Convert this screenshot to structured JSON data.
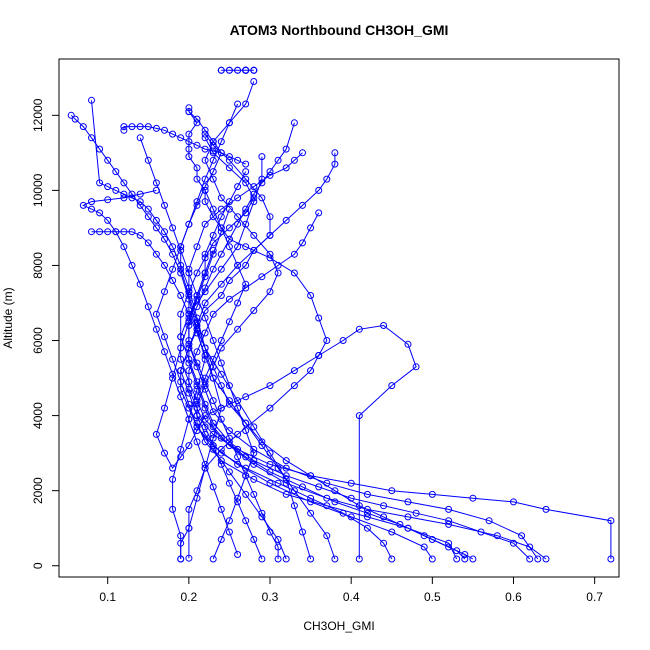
{
  "chart_data": {
    "type": "scatter",
    "title": "ATOM3 Northbound CH3OH_GMI",
    "xlabel": "CH3OH_GMI",
    "ylabel": "Altitude (m)",
    "xlim": [
      0.04,
      0.73
    ],
    "ylim": [
      -300,
      13500
    ],
    "xticks": [
      0.1,
      0.2,
      0.3,
      0.4,
      0.5,
      0.6,
      0.7
    ],
    "xtick_labels": [
      "0.1",
      "0.2",
      "0.3",
      "0.4",
      "0.5",
      "0.6",
      "0.7"
    ],
    "yticks": [
      0,
      2000,
      4000,
      6000,
      8000,
      10000,
      12000
    ],
    "ytick_labels": [
      "0",
      "2000",
      "4000",
      "6000",
      "8000",
      "10000",
      "12000"
    ],
    "grid": false,
    "marker": "open-circle",
    "connected": true,
    "color": "#0000ff",
    "series": [
      {
        "x": [
          0.19,
          0.19,
          0.2,
          0.2,
          0.21,
          0.22,
          0.24,
          0.26,
          0.3,
          0.33,
          0.35,
          0.36,
          0.37,
          0.36,
          0.35,
          0.33,
          0.3,
          0.27,
          0.25,
          0.24,
          0.23,
          0.22,
          0.22,
          0.21,
          0.21,
          0.2,
          0.2,
          0.2,
          0.21,
          0.2,
          0.2
        ],
        "y": [
          180,
          600,
          1000,
          1500,
          2000,
          2600,
          3100,
          3500,
          4200,
          4800,
          5200,
          5600,
          6000,
          6600,
          7200,
          7800,
          8200,
          8500,
          8700,
          9000,
          9300,
          9700,
          10000,
          10300,
          10600,
          10900,
          11100,
          11500,
          11800,
          12100,
          12200
        ]
      },
      {
        "x": [
          0.72,
          0.72,
          0.64,
          0.6,
          0.55,
          0.5,
          0.45,
          0.4,
          0.35,
          0.3,
          0.26,
          0.23,
          0.21,
          0.2,
          0.19,
          0.2,
          0.21,
          0.22,
          0.24,
          0.25,
          0.27,
          0.28,
          0.3,
          0.3,
          0.29,
          0.27,
          0.25,
          0.23,
          0.22
        ],
        "y": [
          180,
          1200,
          1500,
          1700,
          1800,
          1900,
          2000,
          2200,
          2400,
          2700,
          3100,
          3500,
          4000,
          4600,
          5200,
          5800,
          6300,
          6800,
          7200,
          7600,
          8000,
          8400,
          8800,
          9300,
          9800,
          10300,
          10800,
          11200,
          11500
        ]
      },
      {
        "x": [
          0.53,
          0.52,
          0.47,
          0.42,
          0.37,
          0.32,
          0.28,
          0.24,
          0.22,
          0.21,
          0.21,
          0.22,
          0.23,
          0.24,
          0.26,
          0.28,
          0.3,
          0.31,
          0.3,
          0.28,
          0.26,
          0.24,
          0.23,
          0.22,
          0.23,
          0.25,
          0.27,
          0.28
        ],
        "y": [
          180,
          600,
          1000,
          1300,
          1600,
          1900,
          2300,
          2800,
          3300,
          3800,
          4300,
          4800,
          5300,
          5800,
          6300,
          6800,
          7300,
          7800,
          8300,
          8800,
          9300,
          9800,
          10300,
          10800,
          11300,
          11800,
          12300,
          12900
        ]
      },
      {
        "x": [
          0.41,
          0.41,
          0.45,
          0.48,
          0.47,
          0.44,
          0.41,
          0.39,
          0.36,
          0.33,
          0.3,
          0.27,
          0.24,
          0.22,
          0.21,
          0.2,
          0.19,
          0.18,
          0.17,
          0.16,
          0.17,
          0.18,
          0.19,
          0.2,
          0.21,
          0.22,
          0.23
        ],
        "y": [
          180,
          4000,
          4800,
          5300,
          5900,
          6400,
          6300,
          6000,
          5600,
          5200,
          4800,
          4500,
          4200,
          4000,
          3600,
          3200,
          2900,
          2600,
          3000,
          3500,
          4200,
          5000,
          5800,
          6500,
          7200,
          7800,
          8400
        ]
      },
      {
        "x": [
          0.62,
          0.6,
          0.56,
          0.52,
          0.48,
          0.44,
          0.4,
          0.36,
          0.32,
          0.28,
          0.25,
          0.23,
          0.22,
          0.21,
          0.2,
          0.19,
          0.19,
          0.2,
          0.2,
          0.21,
          0.22,
          0.24,
          0.26,
          0.28,
          0.3,
          0.32,
          0.33,
          0.34
        ],
        "y": [
          180,
          600,
          900,
          1200,
          1400,
          1600,
          1800,
          2100,
          2400,
          2800,
          3300,
          3800,
          4300,
          4900,
          5500,
          6100,
          6700,
          7300,
          7900,
          8500,
          9100,
          9500,
          9800,
          10100,
          10400,
          10600,
          10800,
          11000
        ]
      },
      {
        "x": [
          0.54,
          0.53,
          0.5,
          0.47,
          0.44,
          0.41,
          0.38,
          0.35,
          0.32,
          0.29,
          0.27,
          0.25,
          0.24,
          0.23,
          0.22,
          0.21,
          0.2,
          0.2,
          0.21,
          0.22,
          0.23,
          0.25,
          0.27,
          0.28,
          0.27,
          0.25,
          0.23,
          0.22
        ],
        "y": [
          180,
          400,
          700,
          1000,
          1300,
          1600,
          2000,
          2400,
          2800,
          3300,
          3800,
          4300,
          4800,
          5300,
          5800,
          6300,
          6800,
          7300,
          7800,
          8200,
          8600,
          9000,
          9400,
          9800,
          10200,
          10600,
          11000,
          11400
        ]
      },
      {
        "x": [
          0.31,
          0.31,
          0.3,
          0.29,
          0.28,
          0.27,
          0.26,
          0.25,
          0.24,
          0.23,
          0.22,
          0.21,
          0.2,
          0.2,
          0.21,
          0.22,
          0.23,
          0.24,
          0.25,
          0.26,
          0.27,
          0.28,
          0.29,
          0.3,
          0.31,
          0.32,
          0.33
        ],
        "y": [
          180,
          500,
          900,
          1400,
          1900,
          2400,
          2900,
          3400,
          3900,
          4400,
          4900,
          5400,
          5900,
          6400,
          6900,
          7400,
          7900,
          8300,
          8700,
          9100,
          9500,
          9900,
          10200,
          10500,
          10800,
          11100,
          11800
        ]
      },
      {
        "x": [
          0.19,
          0.19,
          0.18,
          0.18,
          0.19,
          0.2,
          0.21,
          0.22,
          0.21,
          0.2,
          0.19,
          0.18,
          0.17,
          0.16,
          0.15,
          0.14,
          0.13,
          0.12,
          0.11,
          0.1,
          0.09,
          0.08,
          0.07,
          0.06,
          0.055
        ],
        "y": [
          180,
          800,
          1500,
          2300,
          3100,
          3900,
          4700,
          5500,
          6300,
          7100,
          7800,
          8300,
          8700,
          9000,
          9300,
          9600,
          9900,
          10200,
          10500,
          10800,
          11100,
          11400,
          11700,
          11900,
          12000
        ]
      },
      {
        "x": [
          0.64,
          0.62,
          0.58,
          0.52,
          0.47,
          0.42,
          0.37,
          0.32,
          0.28,
          0.25,
          0.23,
          0.22,
          0.21,
          0.2,
          0.2,
          0.2,
          0.21,
          0.22,
          0.22,
          0.23,
          0.24,
          0.25,
          0.26,
          0.27
        ],
        "y": [
          180,
          500,
          800,
          1100,
          1300,
          1500,
          1800,
          2200,
          2700,
          3200,
          3700,
          4200,
          4800,
          5400,
          6000,
          6600,
          7200,
          7800,
          8300,
          8800,
          9300,
          9700,
          10100,
          10500
        ]
      },
      {
        "x": [
          0.5,
          0.49,
          0.45,
          0.4,
          0.35,
          0.3,
          0.26,
          0.23,
          0.21,
          0.2,
          0.19,
          0.19,
          0.2,
          0.21,
          0.22,
          0.24,
          0.26,
          0.28,
          0.3,
          0.32,
          0.34,
          0.36,
          0.37,
          0.38,
          0.38
        ],
        "y": [
          180,
          500,
          900,
          1300,
          1700,
          2200,
          2700,
          3200,
          3700,
          4200,
          4700,
          5200,
          5800,
          6400,
          7000,
          7500,
          8000,
          8400,
          8800,
          9200,
          9600,
          10000,
          10300,
          10700,
          11000
        ]
      },
      {
        "x": [
          0.38,
          0.37,
          0.35,
          0.33,
          0.31,
          0.29,
          0.27,
          0.25,
          0.23,
          0.22,
          0.21,
          0.2,
          0.19,
          0.18,
          0.17,
          0.16,
          0.15,
          0.14,
          0.13,
          0.12,
          0.11,
          0.1,
          0.09,
          0.08
        ],
        "y": [
          180,
          800,
          1400,
          2000,
          2600,
          3200,
          3800,
          4400,
          5000,
          5600,
          6200,
          6700,
          7200,
          7600,
          8000,
          8300,
          8600,
          8800,
          8900,
          8900,
          8900,
          8900,
          8900,
          8900
        ]
      },
      {
        "x": [
          0.26,
          0.25,
          0.24,
          0.23,
          0.22,
          0.21,
          0.2,
          0.19,
          0.18,
          0.17,
          0.16,
          0.15,
          0.14,
          0.13,
          0.12,
          0.11,
          0.1,
          0.09,
          0.08,
          0.07,
          0.08,
          0.1,
          0.12,
          0.14,
          0.16
        ],
        "y": [
          300,
          900,
          1500,
          2100,
          2700,
          3300,
          3900,
          4500,
          5100,
          5700,
          6300,
          6900,
          7500,
          8000,
          8500,
          8900,
          9200,
          9400,
          9500,
          9600,
          9700,
          9750,
          9800,
          9900,
          10000
        ]
      },
      {
        "x": [
          0.32,
          0.31,
          0.29,
          0.27,
          0.25,
          0.23,
          0.21,
          0.2,
          0.19,
          0.18,
          0.17,
          0.16,
          0.17,
          0.18,
          0.19,
          0.2,
          0.21,
          0.22,
          0.23,
          0.24,
          0.23,
          0.22,
          0.21,
          0.2
        ],
        "y": [
          180,
          700,
          1300,
          1900,
          2500,
          3100,
          3700,
          4300,
          4900,
          5500,
          6100,
          6700,
          7300,
          7900,
          8500,
          9100,
          9600,
          10100,
          10500,
          11000,
          11300,
          11600,
          11900,
          12100
        ]
      },
      {
        "x": [
          0.55,
          0.54,
          0.52,
          0.49,
          0.46,
          0.42,
          0.38,
          0.34,
          0.3,
          0.27,
          0.24,
          0.22,
          0.21,
          0.2,
          0.19,
          0.19,
          0.2,
          0.22,
          0.24,
          0.26,
          0.27,
          0.28,
          0.29,
          0.29
        ],
        "y": [
          180,
          300,
          500,
          800,
          1100,
          1400,
          1700,
          2100,
          2500,
          2900,
          3400,
          3900,
          4400,
          4900,
          5500,
          6100,
          6700,
          7300,
          7900,
          8500,
          9100,
          9700,
          10300,
          10900
        ]
      },
      {
        "x": [
          0.29,
          0.28,
          0.27,
          0.26,
          0.25,
          0.24,
          0.23,
          0.22,
          0.21,
          0.2,
          0.2,
          0.21,
          0.22,
          0.23,
          0.25,
          0.27,
          0.29,
          0.31,
          0.33,
          0.34,
          0.35,
          0.36
        ],
        "y": [
          180,
          700,
          1200,
          1700,
          2200,
          2700,
          3200,
          3700,
          4200,
          4700,
          5200,
          5700,
          6200,
          6700,
          7100,
          7400,
          7700,
          8000,
          8300,
          8600,
          9000,
          9400
        ]
      },
      {
        "x": [
          0.45,
          0.44,
          0.42,
          0.39,
          0.35,
          0.31,
          0.27,
          0.24,
          0.22,
          0.21,
          0.21,
          0.22,
          0.23,
          0.24,
          0.25,
          0.26,
          0.27,
          0.26,
          0.25,
          0.24,
          0.23,
          0.22
        ],
        "y": [
          180,
          600,
          1000,
          1400,
          1800,
          2200,
          2600,
          3000,
          3500,
          4000,
          4500,
          5000,
          5500,
          6000,
          6500,
          7000,
          7500,
          8000,
          8500,
          9000,
          9500,
          10000
        ]
      },
      {
        "x": [
          0.2,
          0.2,
          0.21,
          0.22,
          0.23,
          0.24,
          0.23,
          0.22,
          0.21,
          0.2,
          0.19,
          0.18,
          0.17,
          0.16,
          0.15,
          0.14,
          0.13,
          0.12,
          0.11,
          0.1,
          0.09,
          0.08
        ],
        "y": [
          200,
          1000,
          1800,
          2600,
          3400,
          4200,
          5000,
          5800,
          6600,
          7400,
          8000,
          8500,
          8900,
          9200,
          9500,
          9700,
          9800,
          9900,
          10000,
          10100,
          10200,
          12400
        ]
      },
      {
        "x": [
          0.63,
          0.61,
          0.57,
          0.52,
          0.47,
          0.42,
          0.37,
          0.32,
          0.28,
          0.25,
          0.23,
          0.22,
          0.21,
          0.2,
          0.2,
          0.21,
          0.22,
          0.23,
          0.24,
          0.25
        ],
        "y": [
          180,
          800,
          1200,
          1500,
          1700,
          1900,
          2200,
          2600,
          3100,
          3600,
          4100,
          4700,
          5300,
          5900,
          6500,
          7100,
          7700,
          8300,
          8900,
          9500
        ]
      },
      {
        "x": [
          0.35,
          0.34,
          0.33,
          0.32,
          0.3,
          0.28,
          0.26,
          0.24,
          0.22,
          0.21,
          0.2,
          0.19,
          0.19,
          0.2,
          0.21,
          0.22,
          0.23,
          0.24,
          0.25,
          0.26
        ],
        "y": [
          180,
          900,
          1600,
          2300,
          3000,
          3700,
          4400,
          5100,
          5800,
          6500,
          7200,
          7900,
          8500,
          9100,
          9700,
          10300,
          10800,
          11300,
          11800,
          12300
        ]
      },
      {
        "x": [
          0.23,
          0.24,
          0.25,
          0.26,
          0.27,
          0.28,
          0.27,
          0.26,
          0.25,
          0.24,
          0.23,
          0.22,
          0.21,
          0.2,
          0.19,
          0.18,
          0.17,
          0.16,
          0.15,
          0.14
        ],
        "y": [
          180,
          700,
          1200,
          1800,
          2400,
          3000,
          3600,
          4200,
          4800,
          5400,
          6000,
          6600,
          7200,
          7800,
          8400,
          9000,
          9600,
          10200,
          10800,
          11400
        ]
      },
      {
        "x": [
          0.24,
          0.24,
          0.25,
          0.25,
          0.26,
          0.26,
          0.27,
          0.27,
          0.27,
          0.27,
          0.27,
          0.27,
          0.27,
          0.27,
          0.28,
          0.28,
          0.28
        ],
        "y": [
          13200,
          13200,
          13200,
          13200,
          13200,
          13200,
          13200,
          13200,
          13200,
          13200,
          13200,
          13200,
          13200,
          13200,
          13200,
          13200,
          13200
        ]
      },
      {
        "x": [
          0.12,
          0.12,
          0.13,
          0.14,
          0.15,
          0.16,
          0.17,
          0.18,
          0.19,
          0.2,
          0.21,
          0.22,
          0.23,
          0.24,
          0.25,
          0.26,
          0.27
        ],
        "y": [
          11600,
          11700,
          11700,
          11700,
          11700,
          11650,
          11600,
          11500,
          11400,
          11300,
          11200,
          11100,
          11050,
          11000,
          10900,
          10800,
          10700
        ]
      }
    ]
  }
}
